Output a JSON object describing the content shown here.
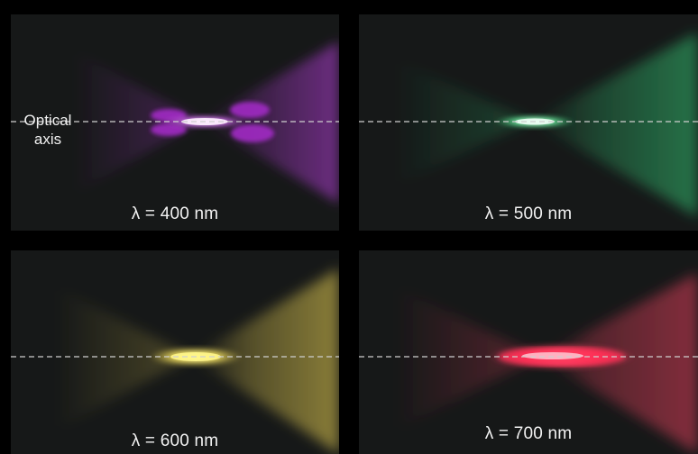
{
  "axis_label": {
    "line1": "Optical",
    "line2": "axis"
  },
  "panels": [
    {
      "id": "p400",
      "caption": "λ = 400 nm",
      "color": "#b23cd6",
      "focus_color": "#f4d2ff",
      "core": "#d98af2"
    },
    {
      "id": "p500",
      "caption": "λ = 500 nm",
      "color": "#2fae68",
      "focus_color": "#d8ffe6",
      "core": "#6ee09a"
    },
    {
      "id": "p600",
      "caption": "λ = 600 nm",
      "color": "#c8b44a",
      "focus_color": "#fff27a",
      "core": "#ead870"
    },
    {
      "id": "p700",
      "caption": "λ = 700 nm",
      "color": "#cc3b54",
      "focus_color": "#ff9aaa",
      "core": "#ff2f55"
    }
  ]
}
